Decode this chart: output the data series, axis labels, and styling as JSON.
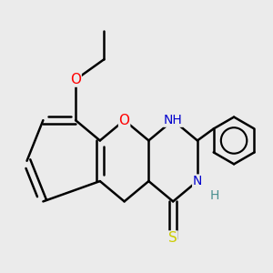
{
  "bg_color": "#ebebeb",
  "bond_color": "#000000",
  "bond_width": 1.8,
  "atom_colors": {
    "O": "#ff0000",
    "N": "#0000cd",
    "S": "#cccc00",
    "C": "#000000",
    "H": "#4a9090"
  },
  "font_size": 10
}
